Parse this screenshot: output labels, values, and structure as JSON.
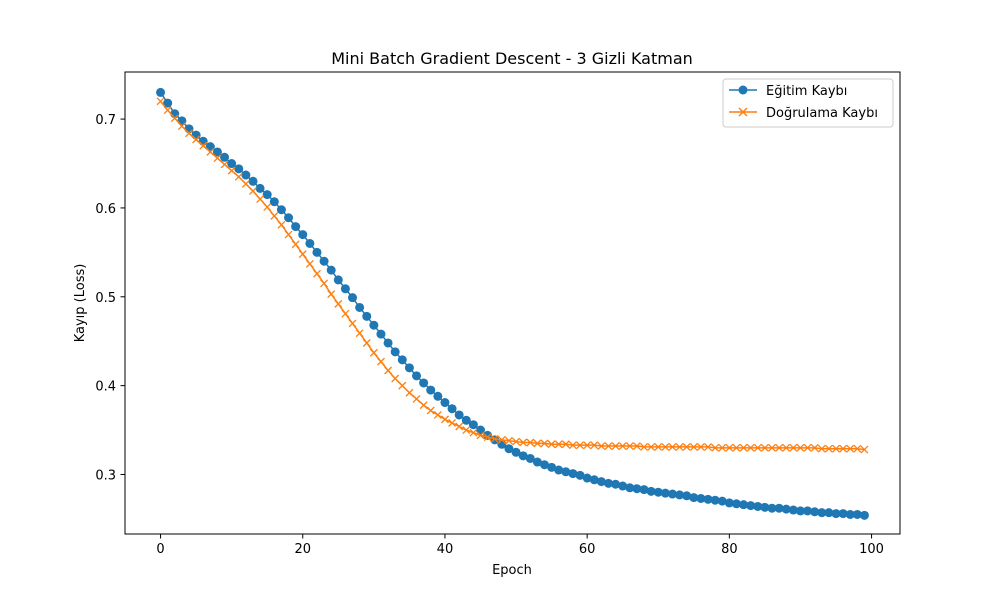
{
  "chart_data": {
    "type": "line",
    "title": "Mini Batch Gradient Descent - 3 Gizli Katman",
    "xlabel": "Epoch",
    "ylabel": "Kayıp (Loss)",
    "xlim": [
      -5,
      104
    ],
    "ylim": [
      0.233,
      0.753
    ],
    "xticks": [
      0,
      20,
      40,
      60,
      80,
      100
    ],
    "xtick_labels": [
      "0",
      "20",
      "40",
      "60",
      "80",
      "100"
    ],
    "yticks": [
      0.3,
      0.4,
      0.5,
      0.6,
      0.7
    ],
    "ytick_labels": [
      "0.3",
      "0.4",
      "0.5",
      "0.6",
      "0.7"
    ],
    "grid": false,
    "legend_position": "top-right",
    "x": [
      0,
      1,
      2,
      3,
      4,
      5,
      6,
      7,
      8,
      9,
      10,
      11,
      12,
      13,
      14,
      15,
      16,
      17,
      18,
      19,
      20,
      21,
      22,
      23,
      24,
      25,
      26,
      27,
      28,
      29,
      30,
      31,
      32,
      33,
      34,
      35,
      36,
      37,
      38,
      39,
      40,
      41,
      42,
      43,
      44,
      45,
      46,
      47,
      48,
      49,
      50,
      51,
      52,
      53,
      54,
      55,
      56,
      57,
      58,
      59,
      60,
      61,
      62,
      63,
      64,
      65,
      66,
      67,
      68,
      69,
      70,
      71,
      72,
      73,
      74,
      75,
      76,
      77,
      78,
      79,
      80,
      81,
      82,
      83,
      84,
      85,
      86,
      87,
      88,
      89,
      90,
      91,
      92,
      93,
      94,
      95,
      96,
      97,
      98,
      99
    ],
    "series": [
      {
        "name": "Eğitim Kaybı",
        "color": "#1f77b4",
        "marker": "circle",
        "values": [
          0.73,
          0.718,
          0.706,
          0.698,
          0.689,
          0.682,
          0.675,
          0.669,
          0.663,
          0.657,
          0.65,
          0.644,
          0.637,
          0.63,
          0.622,
          0.615,
          0.607,
          0.598,
          0.589,
          0.579,
          0.57,
          0.56,
          0.55,
          0.54,
          0.53,
          0.519,
          0.509,
          0.499,
          0.488,
          0.478,
          0.468,
          0.458,
          0.448,
          0.438,
          0.429,
          0.42,
          0.411,
          0.403,
          0.395,
          0.388,
          0.381,
          0.374,
          0.367,
          0.361,
          0.356,
          0.35,
          0.344,
          0.339,
          0.334,
          0.329,
          0.325,
          0.321,
          0.318,
          0.314,
          0.311,
          0.308,
          0.305,
          0.303,
          0.301,
          0.299,
          0.296,
          0.294,
          0.292,
          0.29,
          0.289,
          0.287,
          0.285,
          0.284,
          0.283,
          0.281,
          0.28,
          0.279,
          0.278,
          0.277,
          0.276,
          0.274,
          0.273,
          0.272,
          0.271,
          0.27,
          0.268,
          0.267,
          0.266,
          0.265,
          0.264,
          0.263,
          0.262,
          0.262,
          0.261,
          0.26,
          0.259,
          0.259,
          0.258,
          0.257,
          0.257,
          0.256,
          0.256,
          0.255,
          0.255,
          0.254
        ]
      },
      {
        "name": "Doğrulama Kaybı",
        "color": "#ff7f0e",
        "marker": "x",
        "values": [
          0.72,
          0.71,
          0.701,
          0.692,
          0.684,
          0.677,
          0.67,
          0.663,
          0.656,
          0.649,
          0.642,
          0.635,
          0.627,
          0.619,
          0.61,
          0.601,
          0.591,
          0.581,
          0.57,
          0.559,
          0.548,
          0.537,
          0.526,
          0.515,
          0.503,
          0.492,
          0.481,
          0.47,
          0.459,
          0.448,
          0.437,
          0.427,
          0.417,
          0.408,
          0.4,
          0.392,
          0.385,
          0.378,
          0.372,
          0.367,
          0.362,
          0.358,
          0.354,
          0.35,
          0.347,
          0.344,
          0.342,
          0.34,
          0.339,
          0.338,
          0.337,
          0.336,
          0.336,
          0.335,
          0.335,
          0.334,
          0.334,
          0.334,
          0.333,
          0.333,
          0.333,
          0.333,
          0.332,
          0.332,
          0.332,
          0.332,
          0.332,
          0.332,
          0.331,
          0.331,
          0.331,
          0.331,
          0.331,
          0.331,
          0.331,
          0.331,
          0.331,
          0.331,
          0.33,
          0.33,
          0.33,
          0.33,
          0.33,
          0.33,
          0.33,
          0.33,
          0.33,
          0.33,
          0.33,
          0.33,
          0.33,
          0.33,
          0.33,
          0.329,
          0.329,
          0.329,
          0.329,
          0.329,
          0.329,
          0.328
        ]
      }
    ]
  }
}
